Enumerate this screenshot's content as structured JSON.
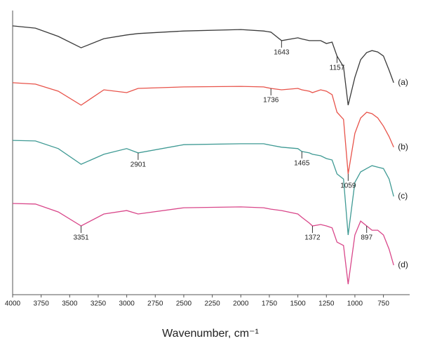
{
  "chart_data": {
    "type": "line",
    "x_label": "Wavenumber, cm⁻¹",
    "x": [
      4000,
      3800,
      3600,
      3400,
      3200,
      3000,
      2900,
      2500,
      2000,
      1800,
      1736,
      1643,
      1500,
      1465,
      1400,
      1372,
      1300,
      1250,
      1200,
      1157,
      1100,
      1059,
      1000,
      950,
      897,
      850,
      800,
      750,
      700,
      660
    ],
    "xlim": [
      4000,
      520
    ],
    "xticks": [
      4000,
      3750,
      3500,
      3250,
      3000,
      2750,
      2500,
      2250,
      2000,
      1750,
      1500,
      1250,
      1000,
      750
    ],
    "ylim": [
      0,
      100
    ],
    "series": [
      {
        "name": "(a)",
        "color": "#3a3a3a",
        "values": [
          94.6,
          93.8,
          90.9,
          86.9,
          90.1,
          91.4,
          91.9,
          92.8,
          93.3,
          92.8,
          92.4,
          89.4,
          90.4,
          90.0,
          89.4,
          89.4,
          89.4,
          88.4,
          88.9,
          84.0,
          80.2,
          66.7,
          76.5,
          82.7,
          85.2,
          85.9,
          85.4,
          84.0,
          79.0,
          74.6
        ]
      },
      {
        "name": "(b)",
        "color": "#e8534a",
        "values": [
          74.6,
          74.1,
          71.6,
          66.7,
          72.1,
          71.1,
          72.6,
          73.1,
          73.3,
          73.1,
          72.6,
          72.1,
          72.6,
          72.1,
          71.6,
          71.1,
          72.1,
          71.6,
          70.4,
          64.2,
          61.7,
          42.5,
          56.8,
          62.2,
          64.2,
          63.7,
          62.2,
          59.3,
          55.6,
          51.9
        ]
      },
      {
        "name": "(c)",
        "color": "#3f9a94",
        "values": [
          54.3,
          54.1,
          51.4,
          45.9,
          49.4,
          51.4,
          49.9,
          52.8,
          53.1,
          53.1,
          52.6,
          51.9,
          51.4,
          50.4,
          49.9,
          49.4,
          48.9,
          47.9,
          47.4,
          42.5,
          40.7,
          21.0,
          39.5,
          43.2,
          44.4,
          45.4,
          44.9,
          44.4,
          40.7,
          34.6
        ]
      },
      {
        "name": "(d)",
        "color": "#d9478a",
        "values": [
          32.1,
          31.9,
          29.1,
          24.2,
          28.4,
          29.6,
          28.4,
          30.6,
          30.9,
          30.6,
          30.1,
          29.6,
          28.4,
          27.2,
          25.2,
          24.2,
          24.7,
          24.2,
          23.5,
          18.5,
          17.3,
          3.7,
          21.0,
          25.9,
          24.2,
          22.7,
          22.7,
          21.0,
          16.0,
          10.4
        ]
      }
    ],
    "annotations": [
      {
        "label": "1643",
        "point": 11,
        "series": 0
      },
      {
        "label": "1157",
        "point": 19,
        "series": 0
      },
      {
        "label": "1736",
        "point": 10,
        "series": 1
      },
      {
        "label": "1059",
        "point": 21,
        "series": 1
      },
      {
        "label": "2901",
        "point": 6,
        "series": 2
      },
      {
        "label": "1465",
        "point": 13,
        "series": 2
      },
      {
        "label": "3351",
        "point": 3,
        "series": 3
      },
      {
        "label": "1372",
        "point": 15,
        "series": 3
      },
      {
        "label": "897",
        "point": 24,
        "series": 3
      }
    ]
  }
}
